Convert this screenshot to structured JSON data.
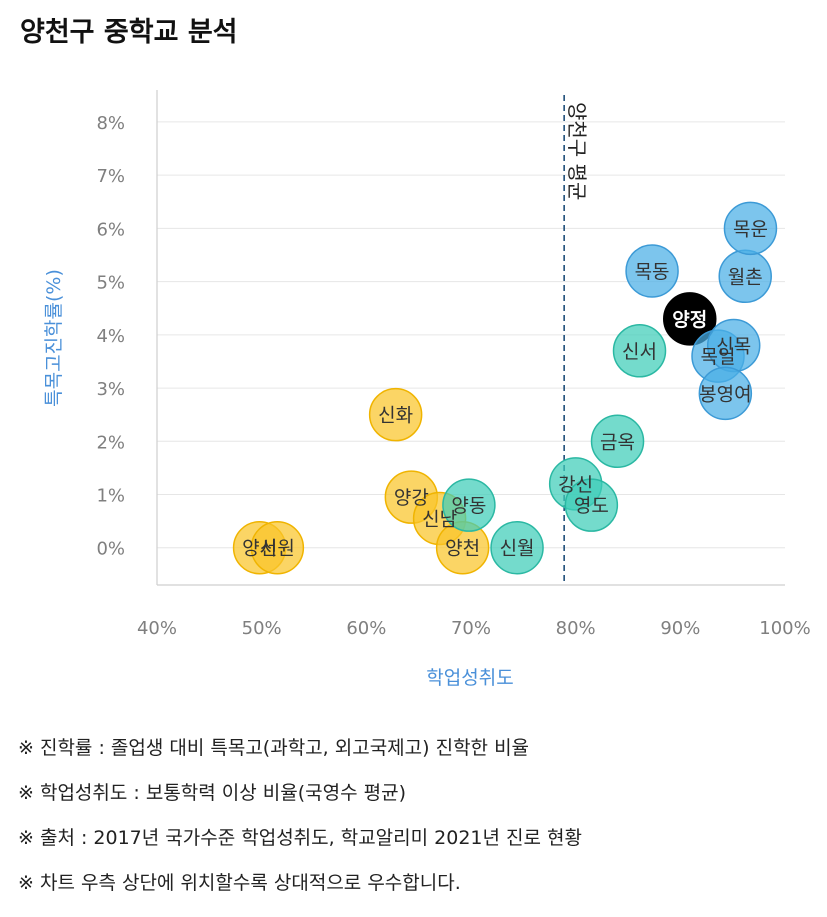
{
  "title": "양천구 중학교 분석",
  "chart_data": {
    "type": "scatter",
    "xlabel": "학업성취도",
    "ylabel": "특목고진학률(%)",
    "xlim": [
      40,
      100
    ],
    "ylim": [
      -0.7,
      8.6
    ],
    "x_ticks": [
      "40%",
      "50%",
      "60%",
      "70%",
      "80%",
      "90%",
      "100%"
    ],
    "y_ticks": [
      "0%",
      "1%",
      "2%",
      "3%",
      "4%",
      "5%",
      "6%",
      "7%",
      "8%"
    ],
    "grid": "horizontal",
    "reference_line": {
      "label": "양천구 평균",
      "x": 78.9
    },
    "colors": {
      "yellow": "#f9c52a",
      "teal": "#3fcdb8",
      "blue": "#4aaee6",
      "black": "#000000"
    },
    "points": [
      {
        "name": "양서",
        "x": 49.8,
        "y": 0.0,
        "group": "yellow"
      },
      {
        "name": "신원",
        "x": 51.5,
        "y": 0.0,
        "group": "yellow"
      },
      {
        "name": "신화",
        "x": 62.8,
        "y": 2.5,
        "group": "yellow"
      },
      {
        "name": "양강",
        "x": 64.3,
        "y": 0.95,
        "group": "yellow"
      },
      {
        "name": "신남",
        "x": 67.0,
        "y": 0.55,
        "group": "yellow"
      },
      {
        "name": "양천",
        "x": 69.2,
        "y": 0.0,
        "group": "yellow"
      },
      {
        "name": "양동",
        "x": 69.8,
        "y": 0.8,
        "group": "teal"
      },
      {
        "name": "신월",
        "x": 74.4,
        "y": 0.0,
        "group": "teal"
      },
      {
        "name": "강신",
        "x": 80.0,
        "y": 1.2,
        "group": "teal"
      },
      {
        "name": "영도",
        "x": 81.5,
        "y": 0.8,
        "group": "teal"
      },
      {
        "name": "금옥",
        "x": 84.0,
        "y": 2.0,
        "group": "teal"
      },
      {
        "name": "신서",
        "x": 86.1,
        "y": 3.7,
        "group": "teal"
      },
      {
        "name": "목동",
        "x": 87.3,
        "y": 5.2,
        "group": "blue"
      },
      {
        "name": "양정",
        "x": 90.9,
        "y": 4.3,
        "group": "black"
      },
      {
        "name": "목일",
        "x": 93.6,
        "y": 3.6,
        "group": "blue"
      },
      {
        "name": "신목",
        "x": 95.1,
        "y": 3.8,
        "group": "blue"
      },
      {
        "name": "봉영여",
        "x": 94.3,
        "y": 2.9,
        "group": "blue"
      },
      {
        "name": "월촌",
        "x": 96.2,
        "y": 5.1,
        "group": "blue"
      },
      {
        "name": "목운",
        "x": 96.7,
        "y": 6.0,
        "group": "blue"
      }
    ]
  },
  "notes": [
    "※ 진학률 : 졸업생 대비 특목고(과학고, 외고국제고) 진학한 비율",
    "※ 학업성취도 : 보통학력 이상 비율(국영수 평균)",
    "※ 출처 : 2017년 국가수준 학업성취도, 학교알리미 2021년 진로 현황",
    "※ 차트 우측 상단에 위치할수록 상대적으로 우수합니다."
  ]
}
